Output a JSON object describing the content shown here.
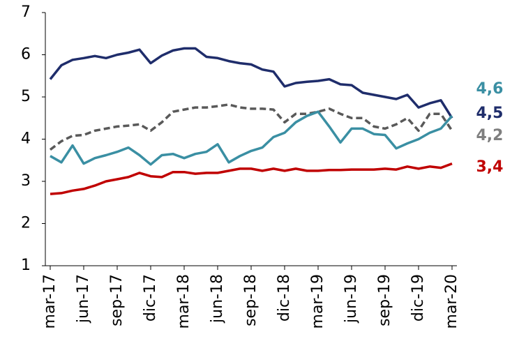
{
  "chart_data": {
    "type": "line",
    "categories": [
      "mar-17",
      null,
      null,
      "jun-17",
      null,
      null,
      "sep-17",
      null,
      null,
      "dic-17",
      null,
      null,
      "mar-18",
      null,
      null,
      "jun-18",
      null,
      null,
      "sep-18",
      null,
      null,
      "dic-18",
      null,
      null,
      "mar-19",
      null,
      null,
      "jun-19",
      null,
      null,
      "sep-19",
      null,
      null,
      "dic-19",
      null,
      null,
      "mar-20"
    ],
    "series": [
      {
        "color": "#1f2d6b",
        "line_style": "solid",
        "values": [
          5.42,
          5.75,
          5.88,
          5.92,
          5.97,
          5.92,
          6.0,
          6.05,
          6.12,
          5.8,
          5.98,
          6.1,
          6.15,
          6.15,
          5.95,
          5.92,
          5.85,
          5.8,
          5.77,
          5.65,
          5.6,
          5.25,
          5.33,
          5.36,
          5.38,
          5.42,
          5.3,
          5.28,
          5.1,
          5.05,
          5.0,
          4.95,
          5.05,
          4.75,
          4.85,
          4.92,
          4.5
        ],
        "value_labels": [
          null,
          null,
          null,
          null,
          null,
          null,
          null,
          null,
          null,
          null,
          null,
          null,
          null,
          null,
          null,
          null,
          null,
          null,
          null,
          null,
          null,
          null,
          null,
          null,
          null,
          null,
          null,
          null,
          null,
          null,
          null,
          null,
          null,
          null,
          null,
          null,
          "4,5"
        ]
      },
      {
        "color": "#595959",
        "line_style": "dashed",
        "values": [
          3.75,
          3.95,
          4.08,
          4.1,
          4.2,
          4.25,
          4.3,
          4.32,
          4.35,
          4.2,
          4.4,
          4.65,
          4.7,
          4.75,
          4.75,
          4.78,
          4.82,
          4.75,
          4.72,
          4.72,
          4.7,
          4.4,
          4.6,
          4.6,
          4.65,
          4.72,
          4.6,
          4.5,
          4.5,
          4.3,
          4.25,
          4.35,
          4.5,
          4.2,
          4.6,
          4.6,
          4.2
        ],
        "value_labels": [
          null,
          null,
          null,
          null,
          null,
          null,
          null,
          null,
          null,
          null,
          null,
          null,
          null,
          null,
          null,
          null,
          null,
          null,
          null,
          null,
          null,
          null,
          null,
          null,
          null,
          null,
          null,
          null,
          null,
          null,
          null,
          null,
          null,
          null,
          null,
          null,
          "4,2"
        ]
      },
      {
        "color": "#3a8fa3",
        "line_style": "solid",
        "values": [
          3.6,
          3.45,
          3.85,
          3.42,
          3.55,
          3.62,
          3.7,
          3.8,
          3.62,
          3.4,
          3.62,
          3.65,
          3.55,
          3.65,
          3.7,
          3.88,
          3.45,
          3.6,
          3.72,
          3.8,
          4.05,
          4.15,
          4.4,
          4.55,
          4.65,
          4.3,
          3.92,
          4.25,
          4.25,
          4.12,
          4.1,
          3.78,
          3.9,
          4.0,
          4.15,
          4.25,
          4.55
        ],
        "value_labels": [
          null,
          null,
          null,
          null,
          null,
          null,
          null,
          null,
          null,
          null,
          null,
          null,
          null,
          null,
          null,
          null,
          null,
          null,
          null,
          null,
          null,
          null,
          null,
          null,
          null,
          null,
          null,
          null,
          null,
          null,
          null,
          null,
          null,
          null,
          null,
          null,
          "4,6"
        ]
      },
      {
        "color": "#c00000",
        "line_style": "solid",
        "values": [
          2.7,
          2.72,
          2.78,
          2.82,
          2.9,
          3.0,
          3.05,
          3.1,
          3.2,
          3.12,
          3.1,
          3.22,
          3.22,
          3.18,
          3.2,
          3.2,
          3.25,
          3.3,
          3.3,
          3.25,
          3.3,
          3.25,
          3.3,
          3.25,
          3.25,
          3.27,
          3.27,
          3.28,
          3.28,
          3.28,
          3.3,
          3.28,
          3.35,
          3.3,
          3.35,
          3.32,
          3.42
        ],
        "value_labels": [
          null,
          null,
          null,
          null,
          null,
          null,
          null,
          null,
          null,
          null,
          null,
          null,
          null,
          null,
          null,
          null,
          null,
          null,
          null,
          null,
          null,
          null,
          null,
          null,
          null,
          null,
          null,
          null,
          null,
          null,
          null,
          null,
          null,
          null,
          null,
          null,
          "3,4"
        ]
      }
    ],
    "ylim": [
      1,
      7
    ],
    "yticks": [
      1,
      2,
      3,
      4,
      5,
      6,
      7
    ],
    "grid": false
  }
}
